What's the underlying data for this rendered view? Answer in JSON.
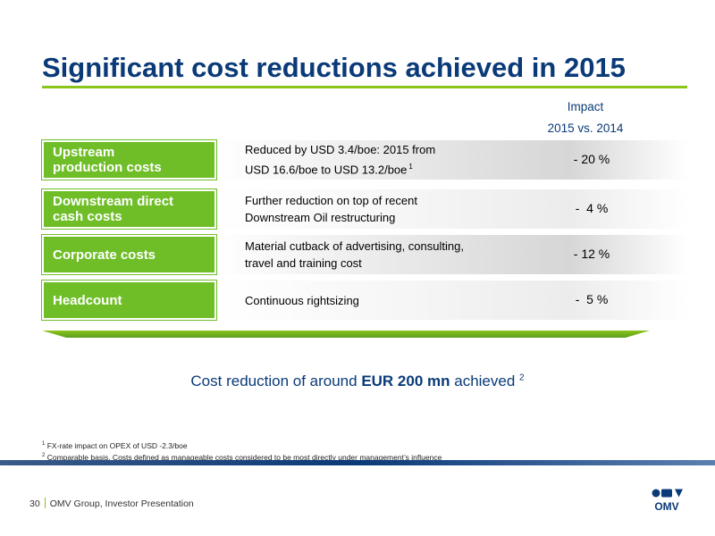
{
  "title": "Significant cost reductions achieved in 2015",
  "impact_header": {
    "line1": "Impact",
    "line2": "2015 vs. 2014"
  },
  "rows": [
    {
      "label": "Upstream\nproduction costs",
      "desc": "Reduced by USD 3.4/boe: 2015 from\nUSD 16.6/boe to USD 13.2/boe",
      "desc_note": "1",
      "impact": "- 20 %"
    },
    {
      "label": "Downstream direct\ncash costs",
      "desc": "Further reduction on top of recent\nDownstream Oil restructuring",
      "desc_note": "",
      "impact": "-  4 %"
    },
    {
      "label": "Corporate costs",
      "desc": "Material cutback of advertising, consulting,\ntravel and training cost",
      "desc_note": "",
      "impact": "- 12 %"
    },
    {
      "label": "Headcount",
      "desc": "Continuous rightsizing",
      "desc_note": "",
      "impact": "-  5 %"
    }
  ],
  "summary": {
    "prefix": "Cost reduction of around ",
    "bold": "EUR 200 mn",
    "suffix": " achieved ",
    "note": "2"
  },
  "footnotes": [
    {
      "num": "1",
      "text": " FX-rate impact on OPEX of USD -2.3/boe"
    },
    {
      "num": "2",
      "text": " Comparable basis. Costs defined as manageable costs considered to be most directly under management’s influence"
    }
  ],
  "footer": {
    "page": "30",
    "text": "OMV Group, Investor Presentation"
  },
  "logo": {
    "text": "OMV"
  },
  "colors": {
    "title": "#0a3a78",
    "accent_green": "#6fbe28",
    "band_blue": "#0a3a78"
  }
}
